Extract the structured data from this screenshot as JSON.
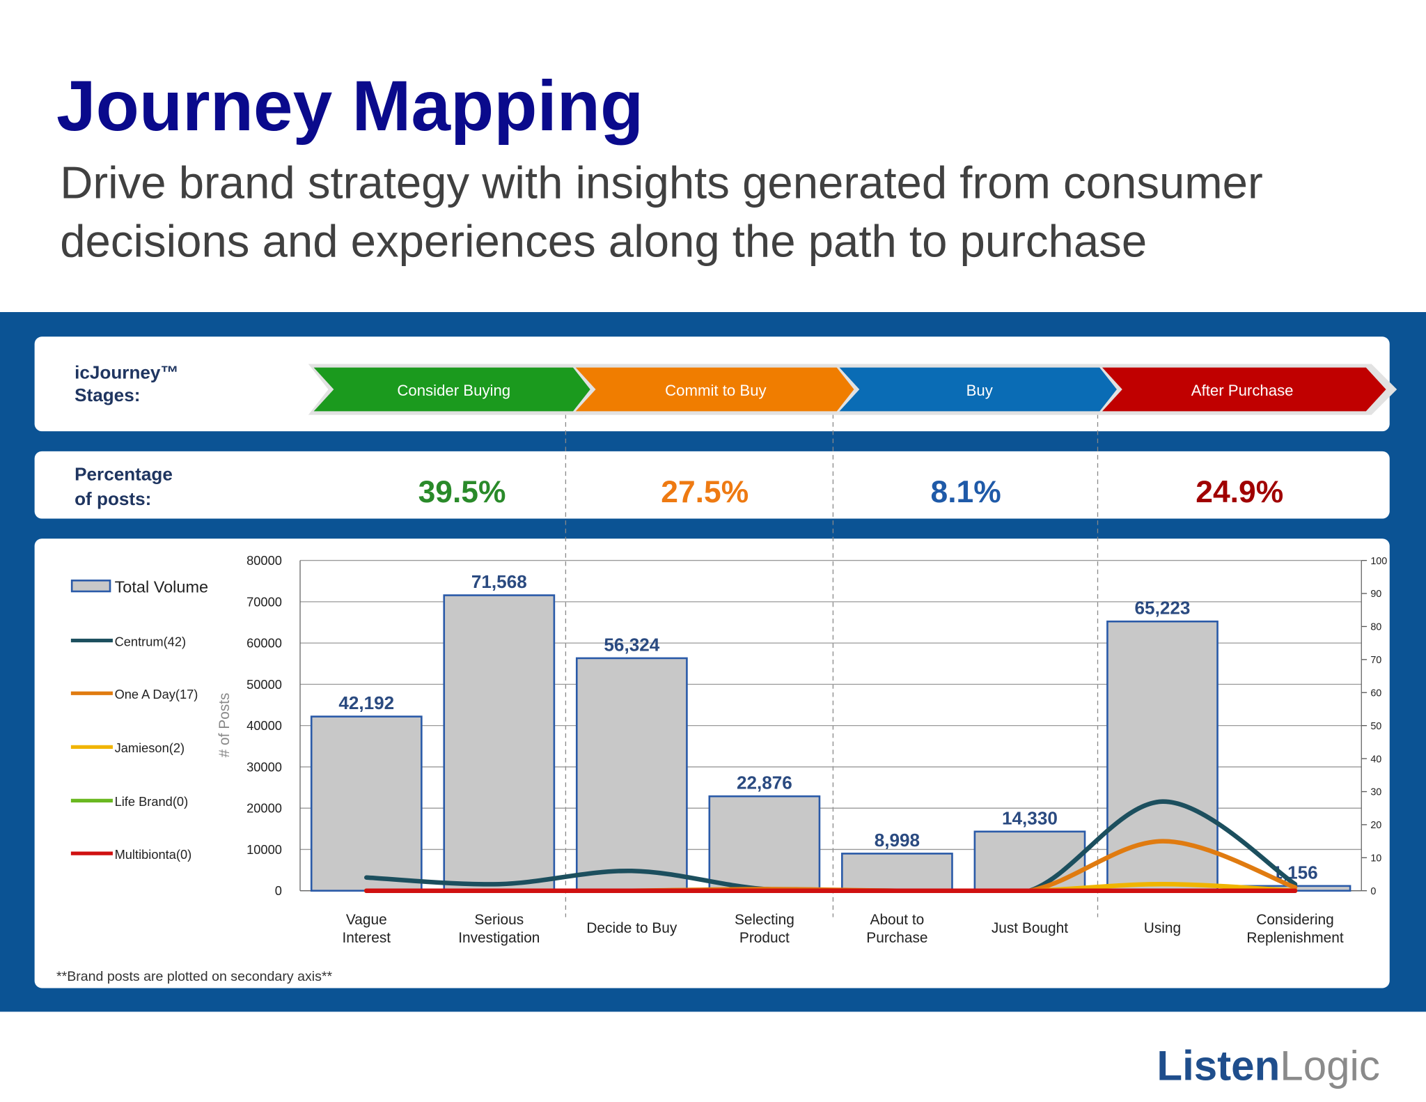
{
  "header": {
    "title": "Journey Mapping",
    "subtitle": [
      "Drive brand strategy with insights generated from consumer",
      "decisions and experiences along the path to purchase"
    ]
  },
  "stages_heading": [
    "icJourney™",
    "Stages:"
  ],
  "percent_heading": [
    "Percentage",
    "of posts:"
  ],
  "stages": [
    {
      "name": "Consider Buying",
      "percentage": "39.5%",
      "color": "#1b9a1e",
      "text_color": "#2a8a2a"
    },
    {
      "name": "Commit to Buy",
      "percentage": "27.5%",
      "color": "#f07d00",
      "text_color": "#ee7a12"
    },
    {
      "name": "Buy",
      "percentage": "8.1%",
      "color": "#0a6cb5",
      "text_color": "#1f5aa8"
    },
    {
      "name": "After Purchase",
      "percentage": "24.9%",
      "color": "#c00000",
      "text_color": "#a00000"
    }
  ],
  "chart_data": {
    "type": "bar",
    "categories": [
      [
        "Vague",
        "Interest"
      ],
      [
        "Serious",
        "Investigation"
      ],
      [
        "Decide to Buy"
      ],
      [
        "Selecting",
        "Product"
      ],
      [
        "About to",
        "Purchase"
      ],
      [
        "Just Bought"
      ],
      [
        "Using"
      ],
      [
        "Considering",
        "Replenishment"
      ]
    ],
    "ylabel": "# of Posts",
    "ylim": [
      0,
      80000
    ],
    "yticks": [
      0,
      10000,
      20000,
      30000,
      40000,
      50000,
      60000,
      70000,
      80000
    ],
    "y2lim": [
      0,
      100
    ],
    "y2ticks": [
      0,
      10,
      20,
      30,
      40,
      50,
      60,
      70,
      80,
      90,
      100
    ],
    "grid": true,
    "series": [
      {
        "name": "Total Volume",
        "color": "#c8c8c8",
        "values": [
          42192,
          71568,
          56324,
          22876,
          8998,
          14330,
          65223,
          1156
        ],
        "value_labels": [
          "42,192",
          "71,568",
          "56,324",
          "22,876",
          "8,998",
          "14,330",
          "65,223",
          "1,156"
        ]
      },
      {
        "name": "Centrum(42)",
        "color": "#1c4f5e",
        "axis": "y2",
        "values": [
          4,
          2,
          6,
          0.5,
          0,
          0,
          27,
          2
        ]
      },
      {
        "name": "One A Day(17)",
        "color": "#e07b10",
        "axis": "y2",
        "values": [
          0,
          0,
          0,
          0.5,
          0,
          0,
          15,
          1
        ]
      },
      {
        "name": "Jamieson(2)",
        "color": "#f0b400",
        "axis": "y2",
        "values": [
          0,
          0,
          0,
          0,
          0,
          0,
          2,
          0
        ]
      },
      {
        "name": "Life Brand(0)",
        "color": "#6ab820",
        "axis": "y2",
        "values": [
          0,
          0,
          0,
          0,
          0,
          0,
          0,
          0
        ]
      },
      {
        "name": "Multibionta(0)",
        "color": "#d01010",
        "axis": "y2",
        "values": [
          0,
          0,
          0,
          0,
          0,
          0,
          0,
          0
        ]
      }
    ],
    "footnote": "**Brand posts are plotted on secondary axis**"
  },
  "logo": [
    "Listen",
    "Logic"
  ]
}
